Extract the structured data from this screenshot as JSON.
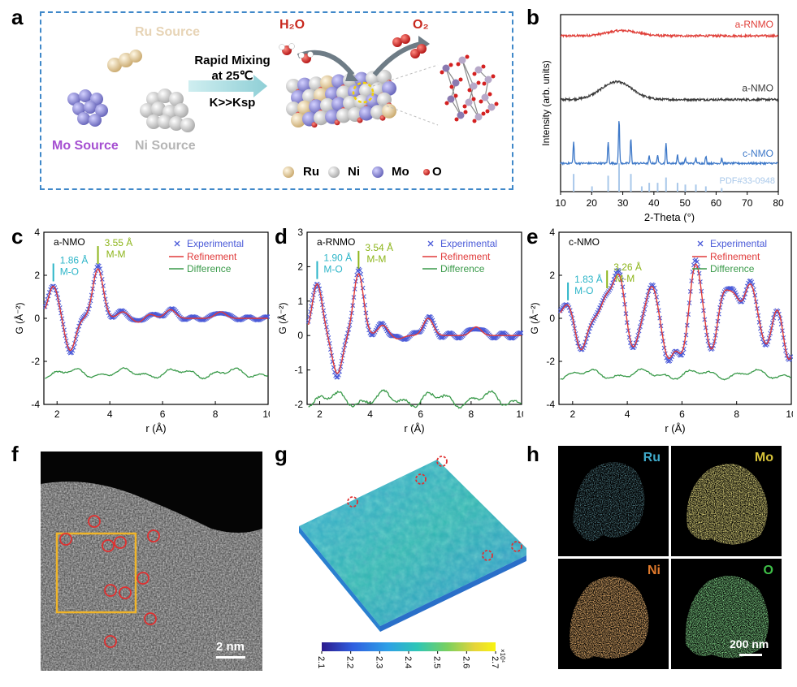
{
  "panel_labels": {
    "a": "a",
    "b": "b",
    "c": "c",
    "d": "d",
    "e": "e",
    "f": "f",
    "g": "g",
    "h": "h"
  },
  "schematic": {
    "ru_source": "Ru Source",
    "mo_source": "Mo Source",
    "ni_source": "Ni Source",
    "mixing_line1": "Rapid Mixing",
    "mixing_line2": "at 25℃",
    "mixing_line3": "K>>Ksp",
    "h2o": "H₂O",
    "o2": "O₂",
    "legend": [
      {
        "label": "Ru",
        "color": "#e9d3a6"
      },
      {
        "label": "Ni",
        "color": "#e6e6e6"
      },
      {
        "label": "Mo",
        "color": "#9a97d8"
      },
      {
        "label": "O",
        "color": "#d42020"
      }
    ],
    "colors": {
      "ru": "#e9d3a6",
      "ni": "#e6e6e6",
      "mo": "#9a97d8",
      "o": "#d42020",
      "ru_text": "#e7d4b6",
      "mo_text": "#a54fd1",
      "ni_text": "#b5b5b5",
      "h2o_text": "#c8281e",
      "o2_text": "#c8281e"
    }
  },
  "chart_data": [
    {
      "id": "b",
      "type": "line",
      "xlabel": "2-Theta (°)",
      "ylabel": "Intensity (arb. units)",
      "xlim": [
        10,
        80
      ],
      "xticks": [
        10,
        20,
        30,
        40,
        50,
        60,
        70,
        80
      ],
      "series": [
        {
          "name": "a-RNMO",
          "color": "#e0403a",
          "shape": "broad",
          "offset": 0.88,
          "hump_center": 30,
          "hump_height": 0.03
        },
        {
          "name": "a-NMO",
          "color": "#3a3a3a",
          "shape": "broad",
          "offset": 0.52,
          "hump_center": 28,
          "hump_height": 0.1
        },
        {
          "name": "c-NMO",
          "color": "#3d78c8",
          "shape": "sharp",
          "offset": 0.16,
          "peaks": [
            [
              14.2,
              0.12
            ],
            [
              25.3,
              0.12
            ],
            [
              28.8,
              0.25
            ],
            [
              32.6,
              0.14
            ],
            [
              38.5,
              0.04
            ],
            [
              41.2,
              0.05
            ],
            [
              43.9,
              0.11
            ],
            [
              47.6,
              0.05
            ],
            [
              50.1,
              0.03
            ],
            [
              53.5,
              0.03
            ],
            [
              56.7,
              0.04
            ],
            [
              61.8,
              0.03
            ]
          ]
        },
        {
          "name": "PDF#33-0948",
          "color": "#a9c8ea",
          "shape": "sticks",
          "sticks": [
            [
              14.2,
              0.1
            ],
            [
              20.1,
              0.03
            ],
            [
              25.3,
              0.09
            ],
            [
              28.8,
              0.16
            ],
            [
              32.6,
              0.1
            ],
            [
              36.1,
              0.03
            ],
            [
              38.5,
              0.05
            ],
            [
              41.2,
              0.05
            ],
            [
              43.9,
              0.08
            ],
            [
              47.6,
              0.05
            ],
            [
              50.1,
              0.04
            ],
            [
              53.5,
              0.04
            ],
            [
              56.7,
              0.03
            ],
            [
              61.8,
              0.02
            ]
          ]
        }
      ]
    },
    {
      "id": "c",
      "type": "line",
      "sample": "a-NMO",
      "xlabel": "r (Å)",
      "ylabel": "G (Å⁻²)",
      "xlim": [
        1.5,
        10
      ],
      "ylim": [
        -4,
        4
      ],
      "xticks": [
        2,
        4,
        6,
        8,
        10
      ],
      "yticks": [
        -4,
        -2,
        0,
        2,
        4
      ],
      "legend": [
        "Experimental",
        "Refinement",
        "Difference"
      ],
      "peaks": [
        [
          1.86,
          1.5
        ],
        [
          2.5,
          -1.5
        ],
        [
          3.55,
          2.3
        ],
        [
          4.5,
          0.3
        ],
        [
          5.1,
          -0.2
        ],
        [
          5.5,
          0.2
        ],
        [
          6.3,
          0.4
        ],
        [
          8.2,
          0.3
        ]
      ],
      "diff_offset": -2.55,
      "annotations": [
        {
          "text1": "1.86 Å",
          "text2": "M-O",
          "x": 1.86,
          "color": "#2cb5c8"
        },
        {
          "text1": "3.55 Å",
          "text2": "M-M",
          "x": 3.55,
          "color": "#8db51a"
        }
      ]
    },
    {
      "id": "d",
      "type": "line",
      "sample": "a-RNMO",
      "xlabel": "r (Å)",
      "ylabel": "G (Å⁻²)",
      "xlim": [
        1.5,
        10
      ],
      "ylim": [
        -2,
        3
      ],
      "xticks": [
        2,
        4,
        6,
        8,
        10
      ],
      "yticks": [
        -2,
        -1,
        0,
        1,
        2,
        3
      ],
      "legend": [
        "Experimental",
        "Refinement",
        "Difference"
      ],
      "peaks": [
        [
          1.9,
          1.5
        ],
        [
          2.7,
          -1.1
        ],
        [
          3.54,
          1.8
        ],
        [
          4.5,
          0.3
        ],
        [
          5.1,
          -0.1
        ],
        [
          6.3,
          0.5
        ],
        [
          8.2,
          0.25
        ]
      ],
      "diff_offset": -1.85,
      "annotations": [
        {
          "text1": "1.90 Å",
          "text2": "M-O",
          "x": 1.9,
          "color": "#2cb5c8"
        },
        {
          "text1": "3.54 Å",
          "text2": "M-M",
          "x": 3.54,
          "color": "#8db51a"
        }
      ]
    },
    {
      "id": "e",
      "type": "line",
      "sample": "c-NMO",
      "xlabel": "r (Å)",
      "ylabel": "G (Å⁻²)",
      "xlim": [
        1.5,
        10
      ],
      "ylim": [
        -4,
        4
      ],
      "xticks": [
        2,
        4,
        6,
        8,
        10
      ],
      "yticks": [
        -4,
        -2,
        0,
        2,
        4
      ],
      "legend": [
        "Experimental",
        "Refinement",
        "Difference"
      ],
      "peaks": [
        [
          1.83,
          0.7
        ],
        [
          2.3,
          -1.5
        ],
        [
          3.26,
          1.0
        ],
        [
          3.7,
          2.0
        ],
        [
          4.2,
          -1.4
        ],
        [
          4.9,
          1.5
        ],
        [
          5.5,
          -1.8
        ],
        [
          6.0,
          -1.6
        ],
        [
          6.5,
          2.6
        ],
        [
          7.1,
          -1.6
        ],
        [
          7.5,
          1.2
        ],
        [
          7.9,
          1.0
        ],
        [
          8.5,
          1.6
        ],
        [
          9.1,
          -1.3
        ],
        [
          9.5,
          0.8
        ],
        [
          9.9,
          -2.0
        ]
      ],
      "diff_offset": -2.6,
      "annotations": [
        {
          "text1": "1.83 Å",
          "text2": "M-O",
          "x": 1.83,
          "color": "#2cb5c8"
        },
        {
          "text1": "3.26 Å",
          "text2": "M-M",
          "x": 3.26,
          "color": "#8db51a"
        }
      ]
    },
    {
      "id": "g",
      "type": "heatmap",
      "colorbar_ticks": [
        "2.1",
        "2.2",
        "2.3",
        "2.4",
        "2.5",
        "2.6",
        "2.7"
      ],
      "colorbar_exponent": "×10⁴"
    }
  ],
  "panel_f": {
    "scale_label": "2 nm"
  },
  "panel_h": {
    "maps": [
      {
        "label": "Ru",
        "color": "#3fa9c9"
      },
      {
        "label": "Mo",
        "color": "#d6c23a"
      },
      {
        "label": "Ni",
        "color": "#e07a2c"
      },
      {
        "label": "O",
        "color": "#3fbf48"
      }
    ],
    "scale_label": "200 nm"
  }
}
